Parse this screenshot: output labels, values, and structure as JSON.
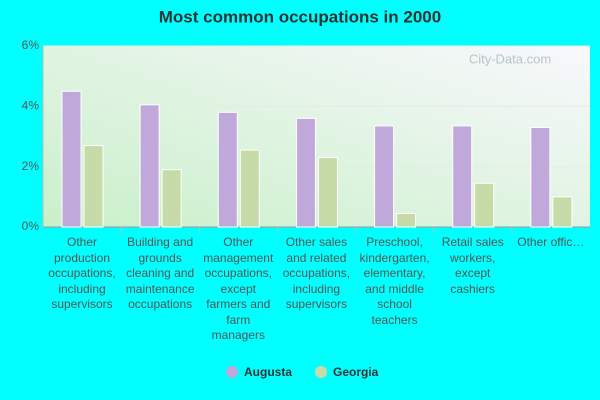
{
  "chart_data": {
    "type": "bar",
    "title": "Most common occupations in 2000",
    "watermark": "City-Data.com",
    "categories": [
      "Other production occupations, including supervisors",
      "Building and grounds cleaning and maintenance occupations",
      "Other management occupations, except farmers and farm managers",
      "Other sales and related occupations, including supervisors",
      "Preschool, kindergarten, elementary, and middle school teachers",
      "Retail sales workers, except cashiers",
      "Other offic…"
    ],
    "series": [
      {
        "name": "Augusta",
        "color": "#c0a8da",
        "values": [
          4.5,
          4.05,
          3.8,
          3.6,
          3.35,
          3.35,
          3.3
        ]
      },
      {
        "name": "Georgia",
        "color": "#c6dba8",
        "values": [
          2.7,
          1.9,
          2.55,
          2.3,
          0.45,
          1.45,
          1.0
        ]
      }
    ],
    "ylim": [
      0,
      6
    ],
    "yticks": [
      {
        "value": 0,
        "label": "0%"
      },
      {
        "value": 2,
        "label": "2%"
      },
      {
        "value": 4,
        "label": "4%"
      },
      {
        "value": 6,
        "label": "6%"
      }
    ],
    "grid": true,
    "legend": "bottom"
  }
}
